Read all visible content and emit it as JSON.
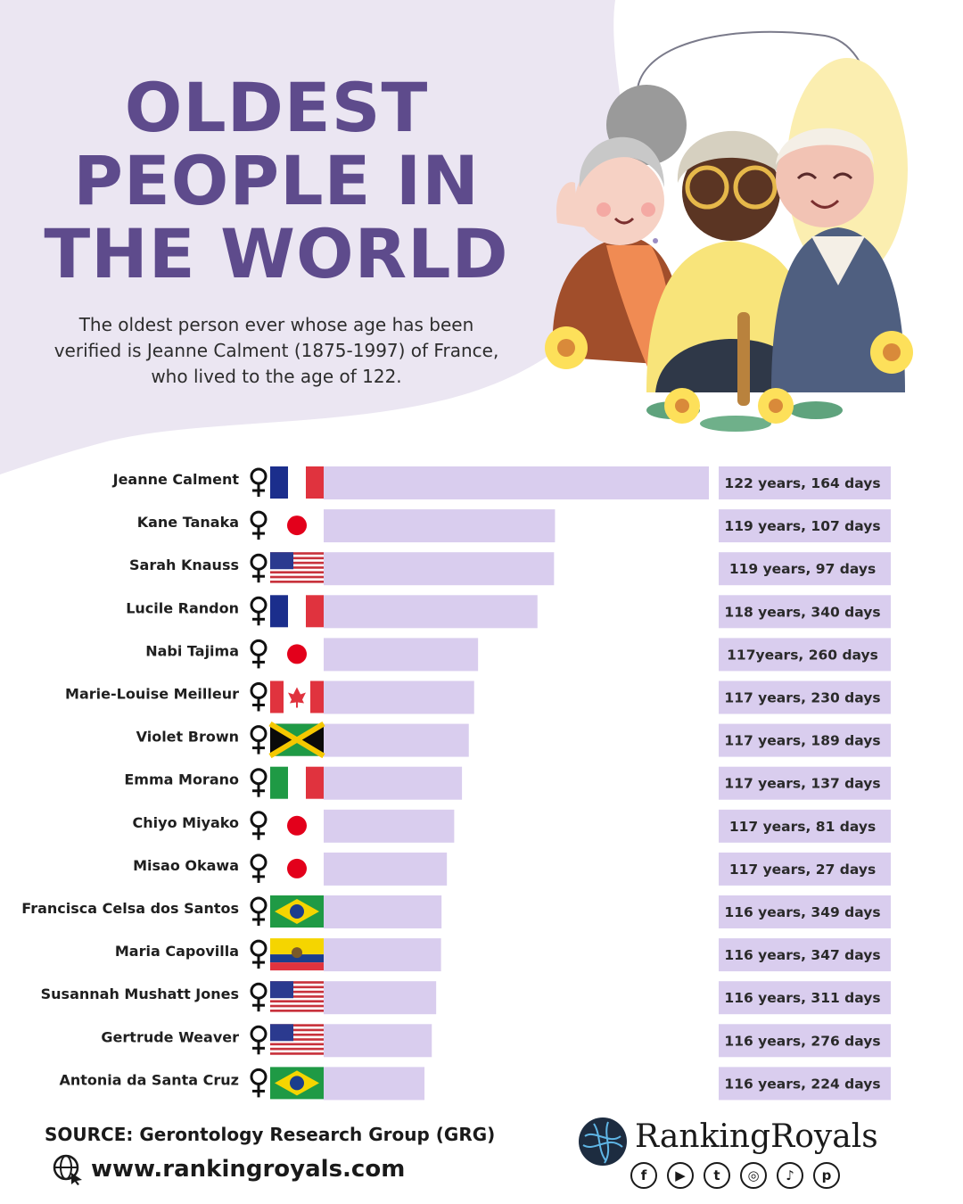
{
  "title_lines": [
    "OLDEST",
    "PEOPLE IN",
    "THE WORLD"
  ],
  "subtitle": "The oldest person ever whose age has been verified is Jeanne Calment (1875-1997) of France, who lived to the age of 122.",
  "colors": {
    "title": "#5e4b8c",
    "bar": "#d9cdee",
    "label_box": "#d9cdee",
    "background_blob": "#ebe6f2"
  },
  "chart_data": {
    "type": "bar",
    "orientation": "horizontal",
    "categories": [
      "Jeanne Calment",
      "Kane Tanaka",
      "Sarah Knauss",
      "Lucile Randon",
      "Nabi Tajima",
      "Marie-Louise Meilleur",
      "Violet Brown",
      "Emma Morano",
      "Chiyo Miyako",
      "Misao Okawa",
      "Francisca Celsa dos Santos",
      "Maria Capovilla",
      "Susannah Mushatt Jones",
      "Gertrude Weaver",
      "Antonia  da Santa Cruz"
    ],
    "values": [
      122.45,
      119.29,
      119.27,
      118.93,
      117.71,
      117.63,
      117.52,
      117.38,
      117.22,
      117.07,
      116.96,
      116.95,
      116.85,
      116.76,
      116.61
    ],
    "value_labels": [
      "122 years, 164 days",
      "119 years, 107 days",
      "119 years, 97 days",
      "118 years, 340 days",
      "117years, 260 days",
      "117 years, 230 days",
      "117 years, 189 days",
      "117 years, 137 days",
      "117 years, 81 days",
      "117 years, 27 days",
      "116 years, 349 days",
      "116 years, 347 days",
      "116 years, 311 days",
      "116 years, 276 days",
      "116 years, 224 days"
    ],
    "countries": [
      "France",
      "Japan",
      "United States",
      "France",
      "Japan",
      "Canada",
      "Jamaica",
      "Italy",
      "Japan",
      "Japan",
      "Brazil",
      "Ecuador",
      "United States",
      "United States",
      "Brazil"
    ],
    "genders": [
      "female",
      "female",
      "female",
      "female",
      "female",
      "female",
      "female",
      "female",
      "female",
      "female",
      "female",
      "female",
      "female",
      "female",
      "female"
    ],
    "icons": {
      "gender": "female-symbol-icon"
    },
    "grid": false,
    "legend": "none"
  },
  "footer": {
    "source": "SOURCE: Gerontology Research Group (GRG)",
    "website": "www.rankingroyals.com",
    "brand": "RankingRoyals",
    "social_icons": [
      "facebook-icon",
      "youtube-icon",
      "twitter-icon",
      "instagram-icon",
      "tiktok-icon",
      "pinterest-icon"
    ]
  }
}
